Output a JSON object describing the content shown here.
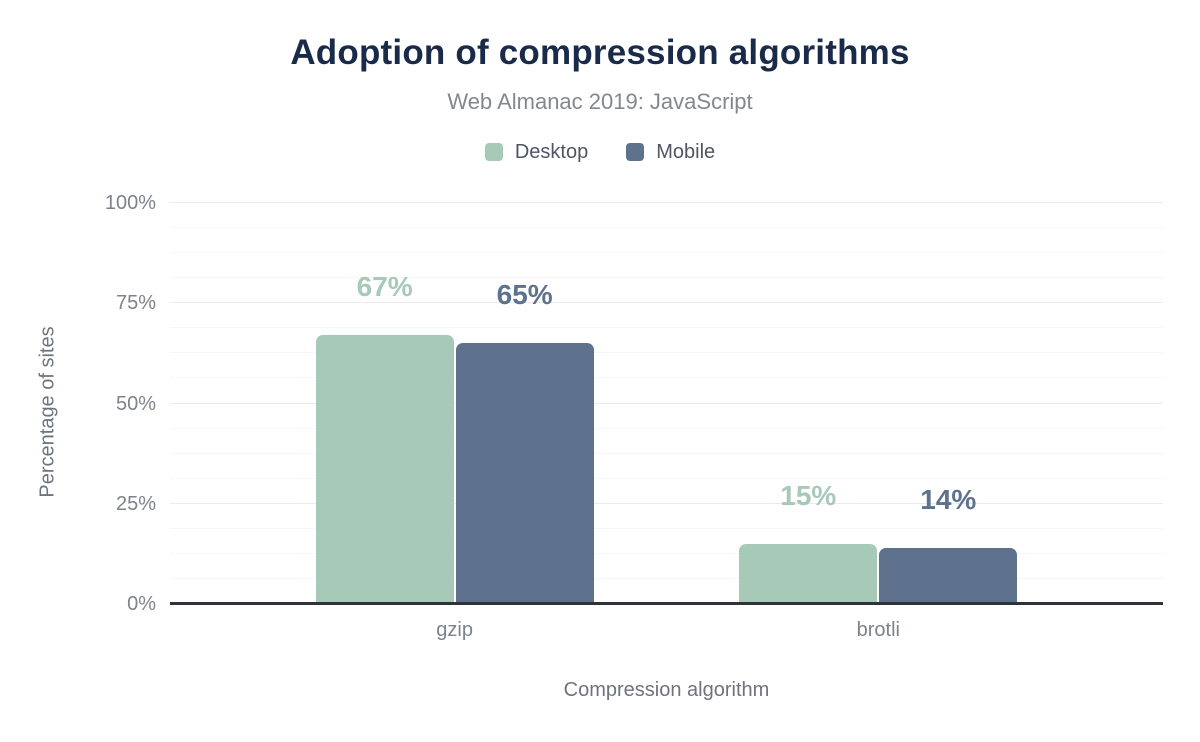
{
  "chart_data": {
    "type": "bar",
    "title": "Adoption of compression algorithms",
    "subtitle": "Web Almanac 2019: JavaScript",
    "categories": [
      "gzip",
      "brotli"
    ],
    "series": [
      {
        "name": "Desktop",
        "color": "#a6c9b8",
        "values": [
          67,
          15
        ]
      },
      {
        "name": "Mobile",
        "color": "#5e718d",
        "values": [
          65,
          14
        ]
      }
    ],
    "data_labels": [
      [
        "67%",
        "15%"
      ],
      [
        "65%",
        "14%"
      ]
    ],
    "xlabel": "Compression algorithm",
    "ylabel": "Percentage of sites",
    "ylim": [
      0,
      100
    ],
    "yticks": [
      0,
      25,
      50,
      75,
      100
    ],
    "ytick_format": "{v}%",
    "data_label_format": "{v}%",
    "minor_grid_step": 6.25,
    "grid": true,
    "legend_position": "top"
  },
  "colors": {
    "title": "#1a2b4a",
    "desktop_series": "#a6c9b8",
    "mobile_series": "#5e718d",
    "axis_line": "#2f3338"
  }
}
